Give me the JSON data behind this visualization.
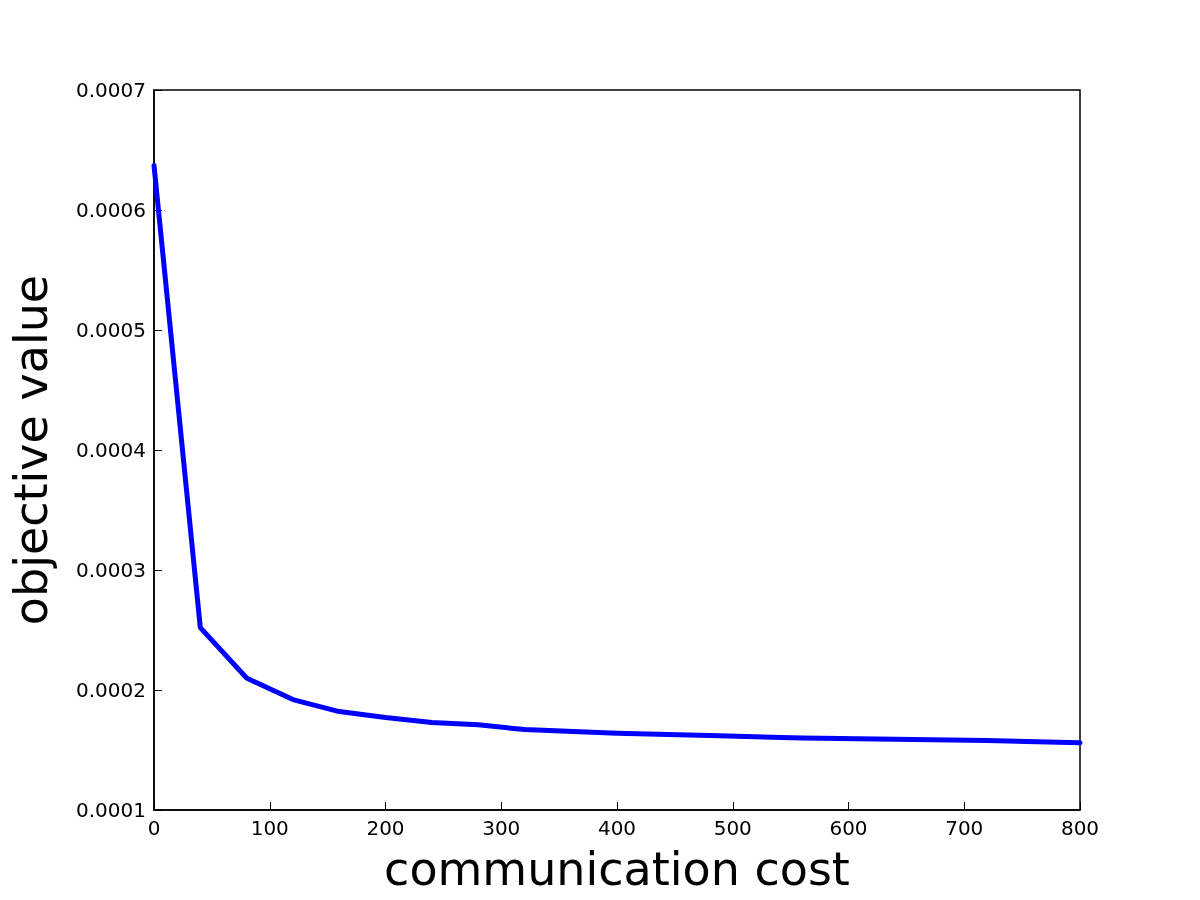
{
  "chart_data": {
    "type": "line",
    "xlabel": "communication cost",
    "ylabel": "objective value",
    "xlim": [
      0,
      800
    ],
    "xticks": [
      0,
      100,
      200,
      300,
      400,
      500,
      600,
      700,
      800
    ],
    "ylim": [
      0.0001,
      0.0007
    ],
    "yticks": [
      0.0001,
      0.0002,
      0.0003,
      0.0004,
      0.0005,
      0.0006,
      0.0007
    ],
    "grid": false,
    "marker": "none",
    "line_style": "solid",
    "series": [
      {
        "color": "#0000ff",
        "x": [
          0,
          40,
          80,
          120,
          160,
          200,
          240,
          280,
          320,
          400,
          480,
          560,
          640,
          720,
          800
        ],
        "values": [
          0.000637,
          0.000252,
          0.00021,
          0.000192,
          0.000182,
          0.000177,
          0.000173,
          0.000171,
          0.000167,
          0.000164,
          0.000162,
          0.00016,
          0.000159,
          0.000158,
          0.000156
        ]
      }
    ]
  }
}
